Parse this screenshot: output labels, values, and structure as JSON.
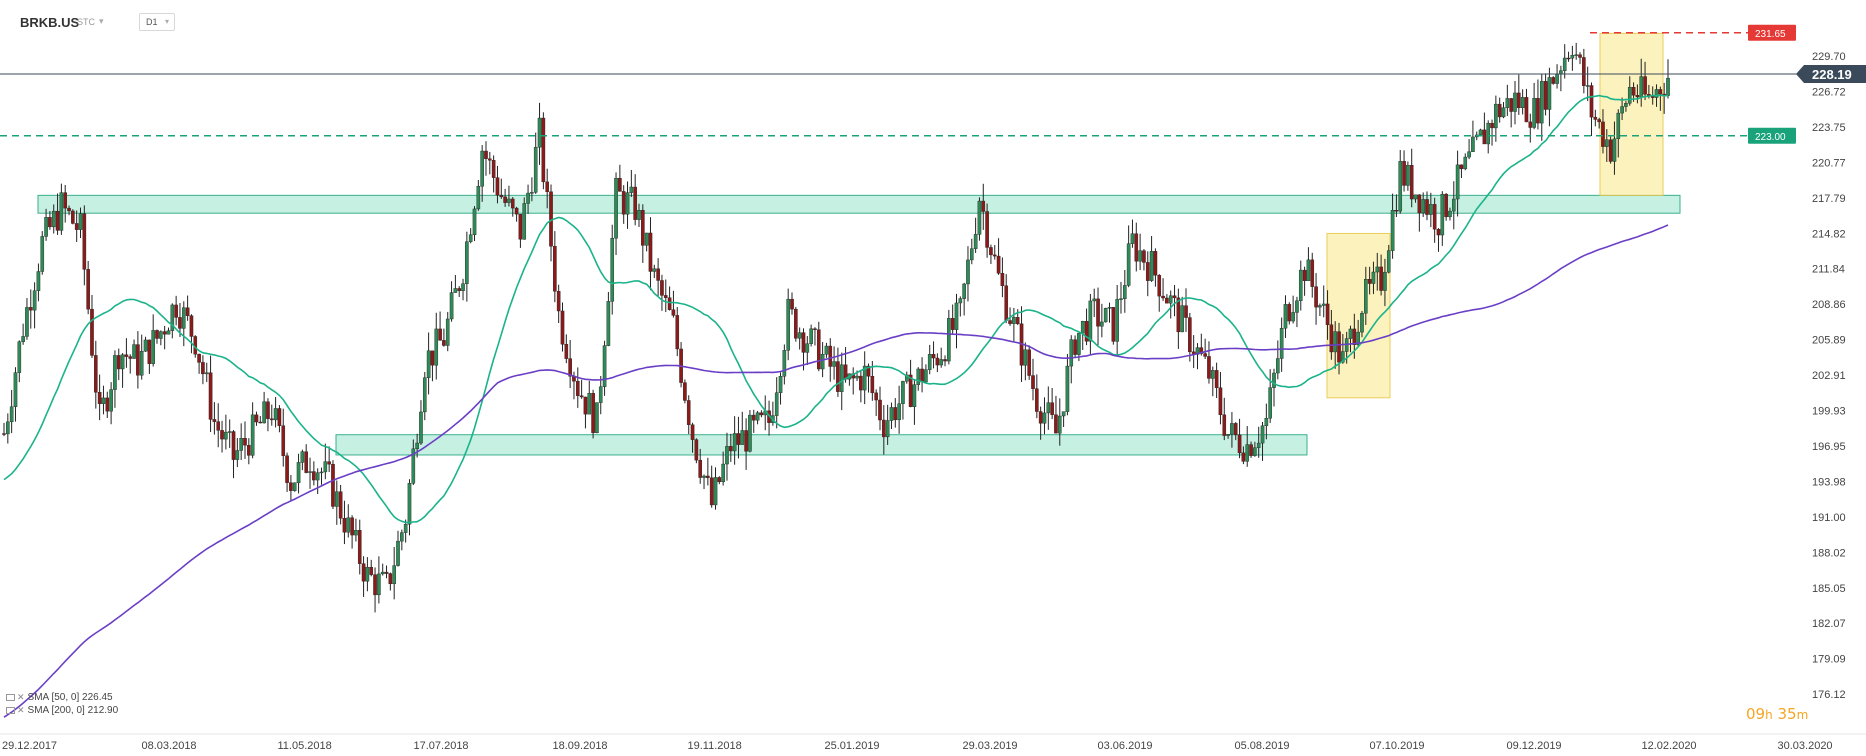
{
  "header": {
    "symbol": "BRKB.US",
    "market": "STC",
    "timeframe": "D1"
  },
  "legend": [
    {
      "label": "SMA [50, 0] 226.45",
      "color": "#1bb38a"
    },
    {
      "label": "SMA [200, 0] 212.90",
      "color": "#6a3fc6"
    }
  ],
  "timer": {
    "hours": "09",
    "h_unit": "h",
    "minutes": "35",
    "m_unit": "m"
  },
  "colors": {
    "up": "#2e8b57",
    "down": "#8b1a1a",
    "sma50": "#1bb38a",
    "sma200": "#6a3fc6",
    "resistance_line": "#e53935",
    "support_line": "#1aa37a",
    "zone_fill": "#bdeedd",
    "highlight_fill": "#fbf1b8"
  },
  "chart_data": {
    "type": "candlestick",
    "title": "BRKB.US D1",
    "x_ticks": [
      "29.12.2017",
      "08.03.2018",
      "11.05.2018",
      "17.07.2018",
      "18.09.2018",
      "19.11.2018",
      "25.01.2019",
      "29.03.2019",
      "03.06.2019",
      "05.08.2019",
      "07.10.2019",
      "09.12.2019",
      "12.02.2020",
      "30.03.2020"
    ],
    "y_ticks": [
      "229.70",
      "226.72",
      "223.75",
      "220.77",
      "217.79",
      "214.82",
      "211.84",
      "208.86",
      "205.89",
      "202.91",
      "199.93",
      "196.95",
      "193.98",
      "191.00",
      "188.02",
      "185.05",
      "182.07",
      "179.09",
      "176.12"
    ],
    "ylim": [
      176.12,
      231.65
    ],
    "current_price": "228.19",
    "levels": [
      {
        "label": "231.65",
        "value": 231.65,
        "style": "dashed",
        "color": "#e53935"
      },
      {
        "label": "223.00",
        "value": 223.0,
        "style": "dashed",
        "color": "#1aa37a"
      }
    ],
    "zones": [
      {
        "name": "resistance-zone",
        "from": "29.12.2017",
        "to": "30.03.2020",
        "low": 216.5,
        "high": 218.0
      },
      {
        "name": "support-zone",
        "from": "11.05.2018",
        "to": "05.08.2019",
        "low": 196.2,
        "high": 197.9
      }
    ],
    "highlights": [
      {
        "name": "highlight-autumn-2019",
        "from": "08.2019",
        "to": "09.2019",
        "low": 201.0,
        "high": 214.8
      },
      {
        "name": "highlight-jan-2020",
        "from": "12.2019",
        "to": "02.2020",
        "low": 218.0,
        "high": 231.6
      }
    ],
    "price_path": [
      [
        0,
        198
      ],
      [
        5,
        207
      ],
      [
        10,
        214
      ],
      [
        15,
        217
      ],
      [
        20,
        215
      ],
      [
        25,
        199
      ],
      [
        30,
        205
      ],
      [
        35,
        204
      ],
      [
        40,
        206
      ],
      [
        45,
        209
      ],
      [
        50,
        206
      ],
      [
        55,
        199
      ],
      [
        60,
        196
      ],
      [
        65,
        198
      ],
      [
        70,
        200
      ],
      [
        75,
        194
      ],
      [
        80,
        196
      ],
      [
        85,
        194
      ],
      [
        90,
        190
      ],
      [
        95,
        186
      ],
      [
        100,
        185
      ],
      [
        105,
        191
      ],
      [
        110,
        204
      ],
      [
        115,
        206
      ],
      [
        120,
        212
      ],
      [
        125,
        222
      ],
      [
        130,
        218
      ],
      [
        135,
        215
      ],
      [
        140,
        223
      ],
      [
        145,
        208
      ],
      [
        150,
        202
      ],
      [
        155,
        199
      ],
      [
        160,
        218
      ],
      [
        165,
        217
      ],
      [
        170,
        211
      ],
      [
        175,
        207
      ],
      [
        180,
        198
      ],
      [
        185,
        192
      ],
      [
        190,
        197
      ],
      [
        195,
        198
      ],
      [
        200,
        199
      ],
      [
        205,
        208
      ],
      [
        210,
        206
      ],
      [
        215,
        204
      ],
      [
        220,
        202
      ],
      [
        225,
        203
      ],
      [
        230,
        199
      ],
      [
        235,
        201
      ],
      [
        240,
        203
      ],
      [
        245,
        205
      ],
      [
        250,
        208
      ],
      [
        255,
        218
      ],
      [
        260,
        211
      ],
      [
        265,
        206
      ],
      [
        270,
        201
      ],
      [
        275,
        198
      ],
      [
        280,
        206
      ],
      [
        285,
        208
      ],
      [
        290,
        207
      ],
      [
        295,
        214
      ],
      [
        300,
        212
      ],
      [
        305,
        209
      ],
      [
        310,
        206
      ],
      [
        315,
        203
      ],
      [
        320,
        198
      ],
      [
        325,
        197
      ],
      [
        330,
        199
      ],
      [
        335,
        208
      ],
      [
        340,
        212
      ],
      [
        345,
        208
      ],
      [
        350,
        204
      ],
      [
        355,
        209
      ],
      [
        360,
        211
      ],
      [
        365,
        220
      ],
      [
        370,
        218
      ],
      [
        375,
        216
      ],
      [
        380,
        219
      ],
      [
        385,
        222
      ],
      [
        390,
        225
      ],
      [
        395,
        226
      ],
      [
        400,
        225
      ],
      [
        405,
        228
      ],
      [
        410,
        231
      ],
      [
        415,
        225
      ],
      [
        420,
        222
      ],
      [
        425,
        227
      ],
      [
        430,
        226
      ],
      [
        435,
        228
      ]
    ],
    "series": [
      {
        "name": "SMA [50, 0]",
        "last": 226.45
      },
      {
        "name": "SMA [200, 0]",
        "last": 212.9
      }
    ]
  }
}
